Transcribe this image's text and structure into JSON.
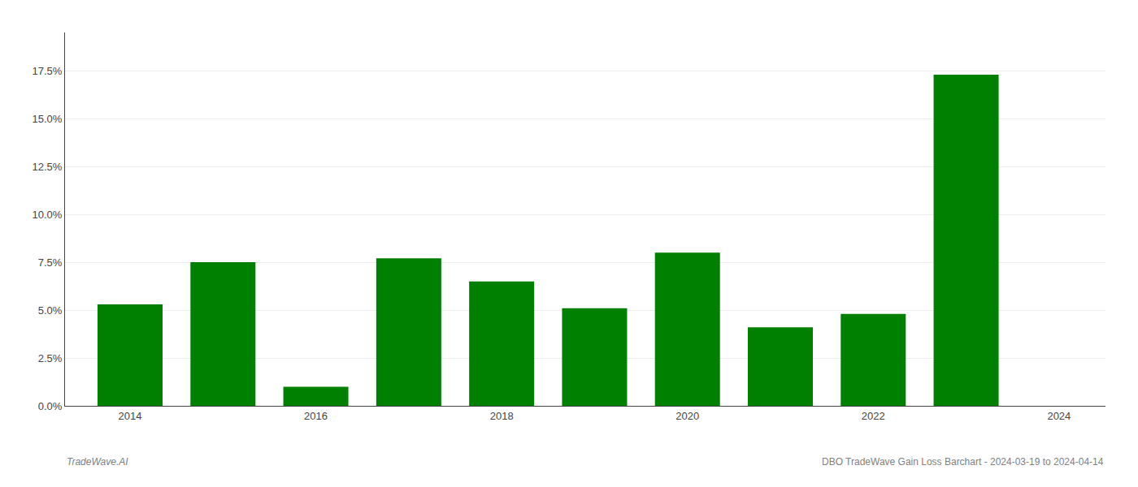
{
  "chart_data": {
    "type": "bar",
    "x": [
      2014,
      2015,
      2016,
      2017,
      2018,
      2019,
      2020,
      2021,
      2022,
      2023
    ],
    "values": [
      0.053,
      0.075,
      0.01,
      0.077,
      0.065,
      0.051,
      0.08,
      0.041,
      0.048,
      0.173
    ],
    "color": "#008000",
    "xlim": [
      2013.3,
      2024.5
    ],
    "xticks": [
      2014,
      2016,
      2018,
      2020,
      2022,
      2024
    ],
    "ylim": [
      0,
      0.195
    ],
    "yticks": [
      {
        "value": 0.0,
        "label": "0.0%"
      },
      {
        "value": 0.025,
        "label": "2.5%"
      },
      {
        "value": 0.05,
        "label": "5.0%"
      },
      {
        "value": 0.075,
        "label": "7.5%"
      },
      {
        "value": 0.1,
        "label": "10.0%"
      },
      {
        "value": 0.125,
        "label": "12.5%"
      },
      {
        "value": 0.15,
        "label": "15.0%"
      },
      {
        "value": 0.175,
        "label": "17.5%"
      }
    ],
    "grid": true,
    "annotations": [
      "TradeWave.AI",
      "DBO TradeWave Gain Loss Barchart - 2024-03-19 to 2024-04-14"
    ]
  }
}
